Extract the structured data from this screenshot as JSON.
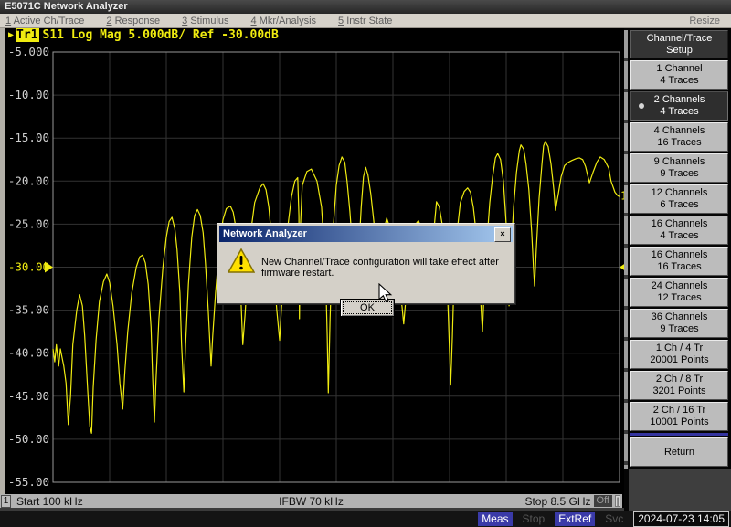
{
  "window": {
    "title": "E5071C Network Analyzer",
    "resize_label": "Resize"
  },
  "menu": {
    "items": [
      {
        "num": "1",
        "label": "Active Ch/Trace"
      },
      {
        "num": "2",
        "label": "Response"
      },
      {
        "num": "3",
        "label": "Stimulus"
      },
      {
        "num": "4",
        "label": "Mkr/Analysis"
      },
      {
        "num": "5",
        "label": "Instr State"
      }
    ]
  },
  "trace_bar": {
    "marker": "▶",
    "trace": "Tr1",
    "text": "S11 Log Mag 5.000dB/ Ref -30.00dB"
  },
  "graph_status": {
    "channel": "1",
    "start": "Start 100 kHz",
    "ifbw": "IFBW 70 kHz",
    "stop": "Stop 8.5 GHz",
    "off_label": "Off",
    "edge_label": "|"
  },
  "dialog": {
    "title": "Network Analyzer",
    "close_label": "×",
    "message": "New Channel/Trace configuration will take effect after firmware restart.",
    "ok_label": "OK"
  },
  "sidebar": {
    "title_line1": "Channel/Trace",
    "title_line2": "Setup",
    "buttons": [
      {
        "line1": "1 Channel",
        "line2": "4 Traces",
        "selected": false
      },
      {
        "line1": "2 Channels",
        "line2": "4 Traces",
        "selected": true
      },
      {
        "line1": "4 Channels",
        "line2": "16 Traces",
        "selected": false
      },
      {
        "line1": "9 Channels",
        "line2": "9 Traces",
        "selected": false
      },
      {
        "line1": "12 Channels",
        "line2": "6 Traces",
        "selected": false
      },
      {
        "line1": "16 Channels",
        "line2": "4 Traces",
        "selected": false
      },
      {
        "line1": "16 Channels",
        "line2": "16 Traces",
        "selected": false
      },
      {
        "line1": "24 Channels",
        "line2": "12 Traces",
        "selected": false
      },
      {
        "line1": "36 Channels",
        "line2": "9 Traces",
        "selected": false
      },
      {
        "line1": "1 Ch / 4 Tr",
        "line2": "20001 Points",
        "selected": false
      },
      {
        "line1": "2 Ch / 8 Tr",
        "line2": "3201 Points",
        "selected": false
      },
      {
        "line1": "2 Ch / 16 Tr",
        "line2": "10001 Points",
        "selected": false
      }
    ],
    "return_label": "Return"
  },
  "system_bar": {
    "indicators": [
      {
        "label": "Meas",
        "active": true
      },
      {
        "label": "Stop",
        "active": false
      },
      {
        "label": "ExtRef",
        "active": true
      },
      {
        "label": "Svc",
        "active": false
      }
    ],
    "datetime": "2024-07-23 14:05"
  },
  "colors": {
    "trace_yellow": "#f0ec10",
    "grid": "#333333",
    "plot_border": "#999999",
    "tick_text": "#cfcfcf",
    "indicator_on_bg": "#3a3aa8",
    "dialog_title_from": "#0a246a",
    "dialog_title_to": "#a6caf0"
  },
  "chart_data": {
    "type": "line",
    "title": "Tr1 S11 Log Mag 5.000dB/ Ref -30.00dB",
    "grid": true,
    "legend_position": "none",
    "y_axis": {
      "label": "dB",
      "scale_per_div": 5.0,
      "ref_level": -30.0,
      "ref_tick_index": 5,
      "ylim": [
        -55,
        -5
      ],
      "ticks": [
        "-5.000",
        "-10.00",
        "-15.00",
        "-20.00",
        "-25.00",
        "-30.00",
        "-35.00",
        "-40.00",
        "-45.00",
        "-50.00",
        "-55.00"
      ]
    },
    "x_axis": {
      "start": "100 kHz",
      "stop": "8.5 GHz",
      "divisions": 10
    },
    "points_format": "[x_fraction_of_sweep, dB]",
    "series": [
      {
        "name": "Tr1 S11 Log Mag",
        "color": "#f0ec10",
        "end_label": "1",
        "points": [
          [
            0.0,
            -39.5
          ],
          [
            0.003,
            -41
          ],
          [
            0.006,
            -39
          ],
          [
            0.01,
            -41.5
          ],
          [
            0.013,
            -39.5
          ],
          [
            0.016,
            -40.5
          ],
          [
            0.019,
            -41.5
          ],
          [
            0.023,
            -43.5
          ],
          [
            0.027,
            -48.3
          ],
          [
            0.031,
            -45
          ],
          [
            0.035,
            -39
          ],
          [
            0.042,
            -35
          ],
          [
            0.047,
            -33.2
          ],
          [
            0.052,
            -34.5
          ],
          [
            0.056,
            -38
          ],
          [
            0.061,
            -44
          ],
          [
            0.065,
            -48.5
          ],
          [
            0.068,
            -49.3
          ],
          [
            0.071,
            -44
          ],
          [
            0.076,
            -38.5
          ],
          [
            0.082,
            -34
          ],
          [
            0.089,
            -31.7
          ],
          [
            0.095,
            -30.8
          ],
          [
            0.1,
            -31.8
          ],
          [
            0.106,
            -34.5
          ],
          [
            0.113,
            -39
          ],
          [
            0.118,
            -43.5
          ],
          [
            0.123,
            -46.5
          ],
          [
            0.127,
            -42
          ],
          [
            0.132,
            -37.5
          ],
          [
            0.139,
            -33
          ],
          [
            0.147,
            -30
          ],
          [
            0.153,
            -28.8
          ],
          [
            0.158,
            -28.6
          ],
          [
            0.163,
            -29.5
          ],
          [
            0.168,
            -32
          ],
          [
            0.173,
            -37
          ],
          [
            0.176,
            -43
          ],
          [
            0.179,
            -48
          ],
          [
            0.182,
            -43
          ],
          [
            0.187,
            -36
          ],
          [
            0.194,
            -30
          ],
          [
            0.2,
            -26.5
          ],
          [
            0.205,
            -24.7
          ],
          [
            0.21,
            -24.2
          ],
          [
            0.215,
            -25.5
          ],
          [
            0.219,
            -28
          ],
          [
            0.224,
            -33
          ],
          [
            0.227,
            -39
          ],
          [
            0.231,
            -44.5
          ],
          [
            0.234,
            -39
          ],
          [
            0.239,
            -32
          ],
          [
            0.245,
            -26.5
          ],
          [
            0.25,
            -24
          ],
          [
            0.255,
            -23.3
          ],
          [
            0.26,
            -24
          ],
          [
            0.265,
            -26
          ],
          [
            0.269,
            -29.5
          ],
          [
            0.274,
            -35
          ],
          [
            0.279,
            -41.5
          ],
          [
            0.282,
            -38
          ],
          [
            0.287,
            -33
          ],
          [
            0.294,
            -27.5
          ],
          [
            0.3,
            -24.5
          ],
          [
            0.306,
            -23.2
          ],
          [
            0.313,
            -22.9
          ],
          [
            0.318,
            -23.6
          ],
          [
            0.323,
            -25.5
          ],
          [
            0.327,
            -29
          ],
          [
            0.332,
            -34
          ],
          [
            0.335,
            -39
          ],
          [
            0.339,
            -35.5
          ],
          [
            0.344,
            -30
          ],
          [
            0.35,
            -25.5
          ],
          [
            0.356,
            -22.5
          ],
          [
            0.365,
            -20.8
          ],
          [
            0.371,
            -20.3
          ],
          [
            0.376,
            -21
          ],
          [
            0.381,
            -23
          ],
          [
            0.385,
            -26
          ],
          [
            0.39,
            -30.5
          ],
          [
            0.395,
            -35
          ],
          [
            0.4,
            -38.5
          ],
          [
            0.403,
            -35
          ],
          [
            0.408,
            -30
          ],
          [
            0.415,
            -25
          ],
          [
            0.421,
            -21.8
          ],
          [
            0.427,
            -20
          ],
          [
            0.432,
            -19.6
          ],
          [
            0.434,
            -24
          ],
          [
            0.435,
            -36
          ],
          [
            0.437,
            -25
          ],
          [
            0.44,
            -20.5
          ],
          [
            0.448,
            -18.9
          ],
          [
            0.456,
            -18.6
          ],
          [
            0.466,
            -20
          ],
          [
            0.474,
            -23
          ],
          [
            0.481,
            -30
          ],
          [
            0.484,
            -38
          ],
          [
            0.486,
            -44.6
          ],
          [
            0.489,
            -36
          ],
          [
            0.494,
            -26
          ],
          [
            0.5,
            -20.5
          ],
          [
            0.505,
            -18.2
          ],
          [
            0.51,
            -17.2
          ],
          [
            0.515,
            -17.8
          ],
          [
            0.519,
            -20
          ],
          [
            0.524,
            -23.5
          ],
          [
            0.529,
            -28
          ],
          [
            0.534,
            -33.5
          ],
          [
            0.539,
            -29
          ],
          [
            0.544,
            -23
          ],
          [
            0.548,
            -19.5
          ],
          [
            0.552,
            -18.4
          ],
          [
            0.556,
            -19.3
          ],
          [
            0.561,
            -21.5
          ],
          [
            0.566,
            -24.5
          ],
          [
            0.571,
            -28
          ],
          [
            0.576,
            -31.5
          ],
          [
            0.581,
            -28.5
          ],
          [
            0.585,
            -25.5
          ],
          [
            0.589,
            -24.3
          ],
          [
            0.594,
            -25.3
          ],
          [
            0.598,
            -27.5
          ],
          [
            0.605,
            -30.5
          ],
          [
            0.611,
            -33
          ],
          [
            0.616,
            -34.5
          ],
          [
            0.619,
            -36.6
          ],
          [
            0.623,
            -33.5
          ],
          [
            0.627,
            -29.5
          ],
          [
            0.634,
            -26.5
          ],
          [
            0.64,
            -25
          ],
          [
            0.645,
            -24.6
          ],
          [
            0.65,
            -25.4
          ],
          [
            0.655,
            -27
          ],
          [
            0.66,
            -29.5
          ],
          [
            0.665,
            -32
          ],
          [
            0.669,
            -28.5
          ],
          [
            0.674,
            -24.5
          ],
          [
            0.677,
            -22.4
          ],
          [
            0.682,
            -23
          ],
          [
            0.687,
            -25
          ],
          [
            0.692,
            -28.5
          ],
          [
            0.697,
            -34
          ],
          [
            0.7,
            -40
          ],
          [
            0.702,
            -43.7
          ],
          [
            0.705,
            -38
          ],
          [
            0.708,
            -31
          ],
          [
            0.713,
            -26
          ],
          [
            0.719,
            -22.5
          ],
          [
            0.726,
            -21.2
          ],
          [
            0.732,
            -20.8
          ],
          [
            0.737,
            -21.3
          ],
          [
            0.742,
            -23
          ],
          [
            0.747,
            -26
          ],
          [
            0.752,
            -30
          ],
          [
            0.755,
            -34
          ],
          [
            0.758,
            -37.5
          ],
          [
            0.761,
            -33
          ],
          [
            0.766,
            -27
          ],
          [
            0.771,
            -22.5
          ],
          [
            0.776,
            -19.5
          ],
          [
            0.781,
            -17.3
          ],
          [
            0.785,
            -16.8
          ],
          [
            0.79,
            -17.5
          ],
          [
            0.795,
            -20
          ],
          [
            0.8,
            -25
          ],
          [
            0.803,
            -30
          ],
          [
            0.805,
            -34.5
          ],
          [
            0.808,
            -29
          ],
          [
            0.813,
            -23
          ],
          [
            0.818,
            -19
          ],
          [
            0.823,
            -16.5
          ],
          [
            0.826,
            -15.8
          ],
          [
            0.831,
            -16.3
          ],
          [
            0.835,
            -18
          ],
          [
            0.84,
            -21
          ],
          [
            0.845,
            -26
          ],
          [
            0.848,
            -30
          ],
          [
            0.85,
            -32.2
          ],
          [
            0.853,
            -28
          ],
          [
            0.858,
            -22
          ],
          [
            0.863,
            -18
          ],
          [
            0.866,
            -15.9
          ],
          [
            0.869,
            -15.4
          ],
          [
            0.874,
            -16
          ],
          [
            0.879,
            -18
          ],
          [
            0.884,
            -21
          ],
          [
            0.887,
            -23.4
          ],
          [
            0.892,
            -21.5
          ],
          [
            0.897,
            -19.5
          ],
          [
            0.903,
            -18.2
          ],
          [
            0.91,
            -17.8
          ],
          [
            0.916,
            -17.6
          ],
          [
            0.923,
            -17.4
          ],
          [
            0.929,
            -17.3
          ],
          [
            0.935,
            -17.5
          ],
          [
            0.94,
            -18.3
          ],
          [
            0.947,
            -20.2
          ],
          [
            0.953,
            -19
          ],
          [
            0.96,
            -17.8
          ],
          [
            0.966,
            -17.2
          ],
          [
            0.973,
            -17.5
          ],
          [
            0.981,
            -18.5
          ],
          [
            0.985,
            -20
          ],
          [
            0.992,
            -21.3
          ],
          [
            0.997,
            -21.7
          ],
          [
            1.0,
            -21.8
          ]
        ]
      }
    ]
  }
}
